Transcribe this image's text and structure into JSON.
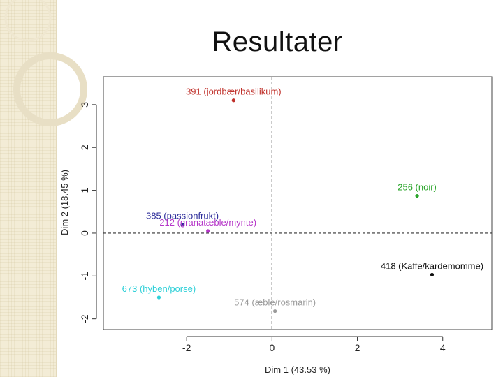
{
  "slide": {
    "title": "Resultater"
  },
  "colors": {
    "background": "#ffffff",
    "side_strip": "#f3ecd6",
    "deco": "#e6dcc0"
  },
  "chart_data": {
    "type": "scatter",
    "title": "",
    "xlabel": "Dim 1 (43.53 %)",
    "ylabel": "Dim 2 (18.45 %)",
    "xlim": [
      -3.95,
      5.15
    ],
    "ylim": [
      -2.25,
      3.65
    ],
    "xticks": [
      -2,
      0,
      2,
      4
    ],
    "yticks": [
      -2,
      -1,
      0,
      1,
      2,
      3
    ],
    "ytick_labels": [
      "-2",
      "-1",
      "0",
      "1",
      "2",
      "3"
    ],
    "grid": false,
    "reference_lines": {
      "x": 0,
      "y": 0,
      "style": "dashed"
    },
    "points": [
      {
        "label": "391 (jordbær/basilikum)",
        "x": -0.9,
        "y": 3.1,
        "color": "#c0312b"
      },
      {
        "label": "256 (noir)",
        "x": 3.4,
        "y": 0.87,
        "color": "#2aa52a"
      },
      {
        "label": "385 (passionfrukt)",
        "x": -2.1,
        "y": 0.2,
        "color": "#2c2c9a"
      },
      {
        "label": "212 (granatæble/mynte)",
        "x": -1.5,
        "y": 0.05,
        "color": "#b535c8"
      },
      {
        "label": "418 (Kaffe/kardemomme)",
        "x": 3.75,
        "y": -0.97,
        "color": "#111111"
      },
      {
        "label": "673 (hyben/porse)",
        "x": -2.65,
        "y": -1.5,
        "color": "#2fd0d8"
      },
      {
        "label": "574 (æble/rosmarin)",
        "x": 0.07,
        "y": -1.82,
        "color": "#9a9a9a"
      }
    ]
  }
}
